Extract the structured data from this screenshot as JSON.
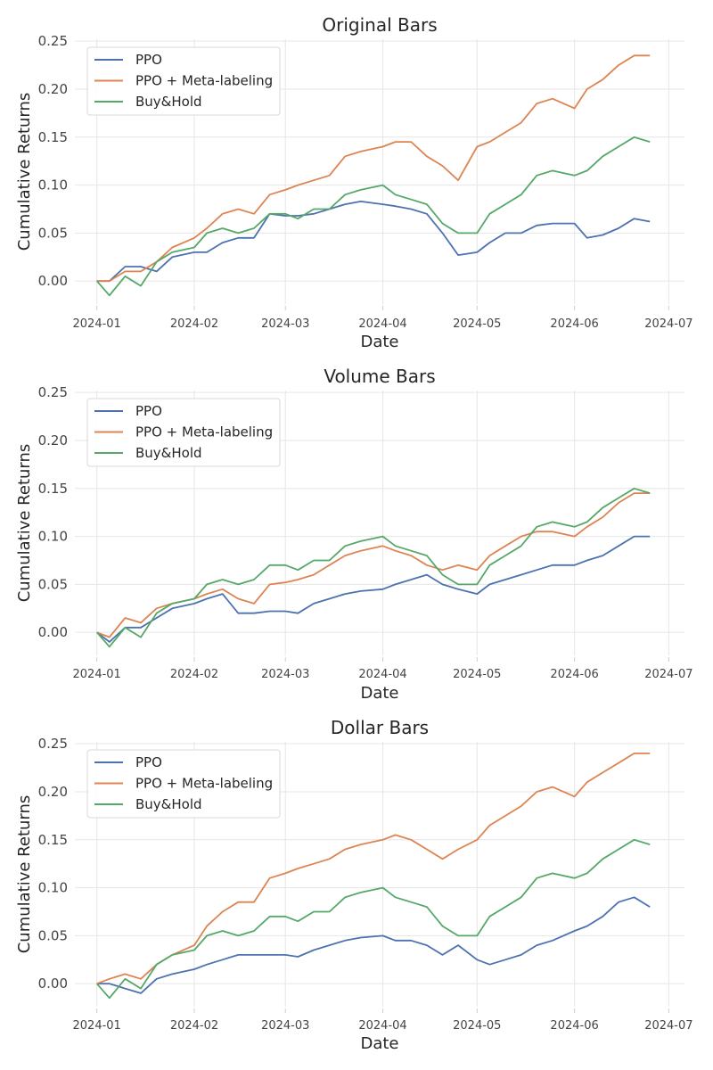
{
  "figure": {
    "legend_placement": "upper-left",
    "grid": true
  },
  "chart_data": [
    {
      "type": "line",
      "title": "Original Bars",
      "xlabel": "Date",
      "ylabel": "Cumulative Returns",
      "x_tick_labels": [
        "2024-01",
        "2024-02",
        "2024-03",
        "2024-04",
        "2024-05",
        "2024-06",
        "2024-07"
      ],
      "x_range": [
        "2023-12-25",
        "2024-07-06"
      ],
      "y_ticks": [
        0.0,
        0.05,
        0.1,
        0.15,
        0.2,
        0.25
      ],
      "y_tick_labels": [
        "0.00",
        "0.05",
        "0.10",
        "0.15",
        "0.20",
        "0.25"
      ],
      "ylim": [
        -0.024,
        0.252
      ],
      "series": [
        {
          "name": "PPO",
          "color": "#4c72b0",
          "x": [
            "2024-01-01",
            "2024-01-05",
            "2024-01-10",
            "2024-01-15",
            "2024-01-20",
            "2024-01-25",
            "2024-02-01",
            "2024-02-05",
            "2024-02-10",
            "2024-02-15",
            "2024-02-20",
            "2024-02-25",
            "2024-03-01",
            "2024-03-05",
            "2024-03-10",
            "2024-03-15",
            "2024-03-20",
            "2024-03-25",
            "2024-04-01",
            "2024-04-05",
            "2024-04-10",
            "2024-04-15",
            "2024-04-20",
            "2024-04-25",
            "2024-05-01",
            "2024-05-05",
            "2024-05-10",
            "2024-05-15",
            "2024-05-20",
            "2024-05-25",
            "2024-06-01",
            "2024-06-05",
            "2024-06-10",
            "2024-06-15",
            "2024-06-20",
            "2024-06-25"
          ],
          "values": [
            0.0,
            0.0,
            0.015,
            0.015,
            0.01,
            0.025,
            0.03,
            0.03,
            0.04,
            0.045,
            0.045,
            0.07,
            0.068,
            0.068,
            0.07,
            0.075,
            0.08,
            0.083,
            0.08,
            0.078,
            0.075,
            0.07,
            0.05,
            0.027,
            0.03,
            0.04,
            0.05,
            0.05,
            0.058,
            0.06,
            0.06,
            0.045,
            0.048,
            0.055,
            0.065,
            0.062
          ]
        },
        {
          "name": "PPO + Meta-labeling",
          "color": "#dd8452",
          "x": [
            "2024-01-01",
            "2024-01-05",
            "2024-01-10",
            "2024-01-15",
            "2024-01-20",
            "2024-01-25",
            "2024-02-01",
            "2024-02-05",
            "2024-02-10",
            "2024-02-15",
            "2024-02-20",
            "2024-02-25",
            "2024-03-01",
            "2024-03-05",
            "2024-03-10",
            "2024-03-15",
            "2024-03-20",
            "2024-03-25",
            "2024-04-01",
            "2024-04-05",
            "2024-04-10",
            "2024-04-15",
            "2024-04-20",
            "2024-04-25",
            "2024-05-01",
            "2024-05-05",
            "2024-05-10",
            "2024-05-15",
            "2024-05-20",
            "2024-05-25",
            "2024-06-01",
            "2024-06-05",
            "2024-06-10",
            "2024-06-15",
            "2024-06-20",
            "2024-06-25"
          ],
          "values": [
            0.0,
            0.0,
            0.01,
            0.01,
            0.02,
            0.035,
            0.045,
            0.055,
            0.07,
            0.075,
            0.07,
            0.09,
            0.095,
            0.1,
            0.105,
            0.11,
            0.13,
            0.135,
            0.14,
            0.145,
            0.145,
            0.13,
            0.12,
            0.105,
            0.14,
            0.145,
            0.155,
            0.165,
            0.185,
            0.19,
            0.18,
            0.2,
            0.21,
            0.225,
            0.235,
            0.235
          ]
        },
        {
          "name": "Buy&Hold",
          "color": "#55a868",
          "x": [
            "2024-01-01",
            "2024-01-05",
            "2024-01-10",
            "2024-01-15",
            "2024-01-20",
            "2024-01-25",
            "2024-02-01",
            "2024-02-05",
            "2024-02-10",
            "2024-02-15",
            "2024-02-20",
            "2024-02-25",
            "2024-03-01",
            "2024-03-05",
            "2024-03-10",
            "2024-03-15",
            "2024-03-20",
            "2024-03-25",
            "2024-04-01",
            "2024-04-05",
            "2024-04-10",
            "2024-04-15",
            "2024-04-20",
            "2024-04-25",
            "2024-05-01",
            "2024-05-05",
            "2024-05-10",
            "2024-05-15",
            "2024-05-20",
            "2024-05-25",
            "2024-06-01",
            "2024-06-05",
            "2024-06-10",
            "2024-06-15",
            "2024-06-20",
            "2024-06-25"
          ],
          "values": [
            0.0,
            -0.015,
            0.005,
            -0.005,
            0.02,
            0.03,
            0.035,
            0.05,
            0.055,
            0.05,
            0.055,
            0.07,
            0.07,
            0.065,
            0.075,
            0.075,
            0.09,
            0.095,
            0.1,
            0.09,
            0.085,
            0.08,
            0.06,
            0.05,
            0.05,
            0.07,
            0.08,
            0.09,
            0.11,
            0.115,
            0.11,
            0.115,
            0.13,
            0.14,
            0.15,
            0.145
          ]
        }
      ]
    },
    {
      "type": "line",
      "title": "Volume Bars",
      "xlabel": "Date",
      "ylabel": "Cumulative Returns",
      "x_tick_labels": [
        "2024-01",
        "2024-02",
        "2024-03",
        "2024-04",
        "2024-05",
        "2024-06",
        "2024-07"
      ],
      "x_range": [
        "2023-12-25",
        "2024-07-06"
      ],
      "y_ticks": [
        0.0,
        0.05,
        0.1,
        0.15,
        0.2,
        0.25
      ],
      "y_tick_labels": [
        "0.00",
        "0.05",
        "0.10",
        "0.15",
        "0.20",
        "0.25"
      ],
      "ylim": [
        -0.024,
        0.252
      ],
      "series": [
        {
          "name": "PPO",
          "color": "#4c72b0",
          "x": [
            "2024-01-01",
            "2024-01-05",
            "2024-01-10",
            "2024-01-15",
            "2024-01-20",
            "2024-01-25",
            "2024-02-01",
            "2024-02-05",
            "2024-02-10",
            "2024-02-15",
            "2024-02-20",
            "2024-02-25",
            "2024-03-01",
            "2024-03-05",
            "2024-03-10",
            "2024-03-15",
            "2024-03-20",
            "2024-03-25",
            "2024-04-01",
            "2024-04-05",
            "2024-04-10",
            "2024-04-15",
            "2024-04-20",
            "2024-04-25",
            "2024-05-01",
            "2024-05-05",
            "2024-05-10",
            "2024-05-15",
            "2024-05-20",
            "2024-05-25",
            "2024-06-01",
            "2024-06-05",
            "2024-06-10",
            "2024-06-15",
            "2024-06-20",
            "2024-06-25"
          ],
          "values": [
            0.0,
            -0.01,
            0.005,
            0.005,
            0.015,
            0.025,
            0.03,
            0.035,
            0.04,
            0.02,
            0.02,
            0.022,
            0.022,
            0.02,
            0.03,
            0.035,
            0.04,
            0.043,
            0.045,
            0.05,
            0.055,
            0.06,
            0.05,
            0.045,
            0.04,
            0.05,
            0.055,
            0.06,
            0.065,
            0.07,
            0.07,
            0.075,
            0.08,
            0.09,
            0.1,
            0.1
          ]
        },
        {
          "name": "PPO + Meta-labeling",
          "color": "#dd8452",
          "x": [
            "2024-01-01",
            "2024-01-05",
            "2024-01-10",
            "2024-01-15",
            "2024-01-20",
            "2024-01-25",
            "2024-02-01",
            "2024-02-05",
            "2024-02-10",
            "2024-02-15",
            "2024-02-20",
            "2024-02-25",
            "2024-03-01",
            "2024-03-05",
            "2024-03-10",
            "2024-03-15",
            "2024-03-20",
            "2024-03-25",
            "2024-04-01",
            "2024-04-05",
            "2024-04-10",
            "2024-04-15",
            "2024-04-20",
            "2024-04-25",
            "2024-05-01",
            "2024-05-05",
            "2024-05-10",
            "2024-05-15",
            "2024-05-20",
            "2024-05-25",
            "2024-06-01",
            "2024-06-05",
            "2024-06-10",
            "2024-06-15",
            "2024-06-20",
            "2024-06-25"
          ],
          "values": [
            0.0,
            -0.005,
            0.015,
            0.01,
            0.025,
            0.03,
            0.035,
            0.04,
            0.045,
            0.035,
            0.03,
            0.05,
            0.052,
            0.055,
            0.06,
            0.07,
            0.08,
            0.085,
            0.09,
            0.085,
            0.08,
            0.07,
            0.065,
            0.07,
            0.065,
            0.08,
            0.09,
            0.1,
            0.105,
            0.105,
            0.1,
            0.11,
            0.12,
            0.135,
            0.145,
            0.145
          ]
        },
        {
          "name": "Buy&Hold",
          "color": "#55a868",
          "x": [
            "2024-01-01",
            "2024-01-05",
            "2024-01-10",
            "2024-01-15",
            "2024-01-20",
            "2024-01-25",
            "2024-02-01",
            "2024-02-05",
            "2024-02-10",
            "2024-02-15",
            "2024-02-20",
            "2024-02-25",
            "2024-03-01",
            "2024-03-05",
            "2024-03-10",
            "2024-03-15",
            "2024-03-20",
            "2024-03-25",
            "2024-04-01",
            "2024-04-05",
            "2024-04-10",
            "2024-04-15",
            "2024-04-20",
            "2024-04-25",
            "2024-05-01",
            "2024-05-05",
            "2024-05-10",
            "2024-05-15",
            "2024-05-20",
            "2024-05-25",
            "2024-06-01",
            "2024-06-05",
            "2024-06-10",
            "2024-06-15",
            "2024-06-20",
            "2024-06-25"
          ],
          "values": [
            0.0,
            -0.015,
            0.005,
            -0.005,
            0.02,
            0.03,
            0.035,
            0.05,
            0.055,
            0.05,
            0.055,
            0.07,
            0.07,
            0.065,
            0.075,
            0.075,
            0.09,
            0.095,
            0.1,
            0.09,
            0.085,
            0.08,
            0.06,
            0.05,
            0.05,
            0.07,
            0.08,
            0.09,
            0.11,
            0.115,
            0.11,
            0.115,
            0.13,
            0.14,
            0.15,
            0.145
          ]
        }
      ]
    },
    {
      "type": "line",
      "title": "Dollar Bars",
      "xlabel": "Date",
      "ylabel": "Cumulative Returns",
      "x_tick_labels": [
        "2024-01",
        "2024-02",
        "2024-03",
        "2024-04",
        "2024-05",
        "2024-06",
        "2024-07"
      ],
      "x_range": [
        "2023-12-25",
        "2024-07-06"
      ],
      "y_ticks": [
        0.0,
        0.05,
        0.1,
        0.15,
        0.2,
        0.25
      ],
      "y_tick_labels": [
        "0.00",
        "0.05",
        "0.10",
        "0.15",
        "0.20",
        "0.25"
      ],
      "ylim": [
        -0.024,
        0.252
      ],
      "series": [
        {
          "name": "PPO",
          "color": "#4c72b0",
          "x": [
            "2024-01-01",
            "2024-01-05",
            "2024-01-10",
            "2024-01-15",
            "2024-01-20",
            "2024-01-25",
            "2024-02-01",
            "2024-02-05",
            "2024-02-10",
            "2024-02-15",
            "2024-02-20",
            "2024-02-25",
            "2024-03-01",
            "2024-03-05",
            "2024-03-10",
            "2024-03-15",
            "2024-03-20",
            "2024-03-25",
            "2024-04-01",
            "2024-04-05",
            "2024-04-10",
            "2024-04-15",
            "2024-04-20",
            "2024-04-25",
            "2024-05-01",
            "2024-05-05",
            "2024-05-10",
            "2024-05-15",
            "2024-05-20",
            "2024-05-25",
            "2024-06-01",
            "2024-06-05",
            "2024-06-10",
            "2024-06-15",
            "2024-06-20",
            "2024-06-25"
          ],
          "values": [
            0.0,
            0.0,
            -0.005,
            -0.01,
            0.005,
            0.01,
            0.015,
            0.02,
            0.025,
            0.03,
            0.03,
            0.03,
            0.03,
            0.028,
            0.035,
            0.04,
            0.045,
            0.048,
            0.05,
            0.045,
            0.045,
            0.04,
            0.03,
            0.04,
            0.025,
            0.02,
            0.025,
            0.03,
            0.04,
            0.045,
            0.055,
            0.06,
            0.07,
            0.085,
            0.09,
            0.08
          ]
        },
        {
          "name": "PPO + Meta-labeling",
          "color": "#dd8452",
          "x": [
            "2024-01-01",
            "2024-01-05",
            "2024-01-10",
            "2024-01-15",
            "2024-01-20",
            "2024-01-25",
            "2024-02-01",
            "2024-02-05",
            "2024-02-10",
            "2024-02-15",
            "2024-02-20",
            "2024-02-25",
            "2024-03-01",
            "2024-03-05",
            "2024-03-10",
            "2024-03-15",
            "2024-03-20",
            "2024-03-25",
            "2024-04-01",
            "2024-04-05",
            "2024-04-10",
            "2024-04-15",
            "2024-04-20",
            "2024-04-25",
            "2024-05-01",
            "2024-05-05",
            "2024-05-10",
            "2024-05-15",
            "2024-05-20",
            "2024-05-25",
            "2024-06-01",
            "2024-06-05",
            "2024-06-10",
            "2024-06-15",
            "2024-06-20",
            "2024-06-25"
          ],
          "values": [
            0.0,
            0.005,
            0.01,
            0.005,
            0.02,
            0.03,
            0.04,
            0.06,
            0.075,
            0.085,
            0.085,
            0.11,
            0.115,
            0.12,
            0.125,
            0.13,
            0.14,
            0.145,
            0.15,
            0.155,
            0.15,
            0.14,
            0.13,
            0.14,
            0.15,
            0.165,
            0.175,
            0.185,
            0.2,
            0.205,
            0.195,
            0.21,
            0.22,
            0.23,
            0.24,
            0.24
          ]
        },
        {
          "name": "Buy&Hold",
          "color": "#55a868",
          "x": [
            "2024-01-01",
            "2024-01-05",
            "2024-01-10",
            "2024-01-15",
            "2024-01-20",
            "2024-01-25",
            "2024-02-01",
            "2024-02-05",
            "2024-02-10",
            "2024-02-15",
            "2024-02-20",
            "2024-02-25",
            "2024-03-01",
            "2024-03-05",
            "2024-03-10",
            "2024-03-15",
            "2024-03-20",
            "2024-03-25",
            "2024-04-01",
            "2024-04-05",
            "2024-04-10",
            "2024-04-15",
            "2024-04-20",
            "2024-04-25",
            "2024-05-01",
            "2024-05-05",
            "2024-05-10",
            "2024-05-15",
            "2024-05-20",
            "2024-05-25",
            "2024-06-01",
            "2024-06-05",
            "2024-06-10",
            "2024-06-15",
            "2024-06-20",
            "2024-06-25"
          ],
          "values": [
            0.0,
            -0.015,
            0.005,
            -0.005,
            0.02,
            0.03,
            0.035,
            0.05,
            0.055,
            0.05,
            0.055,
            0.07,
            0.07,
            0.065,
            0.075,
            0.075,
            0.09,
            0.095,
            0.1,
            0.09,
            0.085,
            0.08,
            0.06,
            0.05,
            0.05,
            0.07,
            0.08,
            0.09,
            0.11,
            0.115,
            0.11,
            0.115,
            0.13,
            0.14,
            0.15,
            0.145
          ]
        }
      ]
    }
  ]
}
